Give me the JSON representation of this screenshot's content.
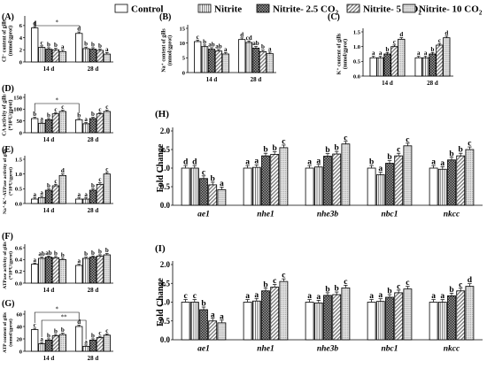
{
  "legend": {
    "items": [
      {
        "label": "Control",
        "pattern": "white"
      },
      {
        "label": "Nitrite",
        "pattern": "vlines"
      },
      {
        "label": "Nitrite- 2.5 CO",
        "sub": "2",
        "pattern": "checker"
      },
      {
        "label": "Nitrite- 5 CO",
        "sub": "2",
        "pattern": "diag"
      },
      {
        "label": "Nitrite- 10 CO",
        "sub": "2",
        "pattern": "dots"
      }
    ]
  },
  "colors": {
    "ink": "#000000",
    "grey": "#8a8a8a",
    "light": "#cfcfcf"
  },
  "chart_data": [
    {
      "id": "A",
      "type": "bar",
      "panel_label": "(A)",
      "ylabel": [
        "Cl⁻ content of gills",
        "(mmol/gprot)"
      ],
      "categories": [
        "14 d",
        "28 d"
      ],
      "yticks": [
        "0",
        "2",
        "4",
        "6"
      ],
      "ylim": [
        0,
        7
      ],
      "series_values": [
        [
          5.6,
          2.4,
          2.1,
          2.0,
          1.7
        ],
        [
          4.7,
          2.2,
          2.1,
          1.9,
          1.3
        ]
      ],
      "letters": [
        [
          "d",
          "c",
          "b",
          "b",
          "a"
        ],
        [
          "d",
          "b",
          "b",
          "b",
          "a"
        ]
      ],
      "sig": {
        "from": 0,
        "to": 1,
        "label": "*"
      }
    },
    {
      "id": "B",
      "type": "bar",
      "panel_label": "(B)",
      "ylabel": [
        "Na⁺ content of gills",
        "(mmol/gprot)"
      ],
      "categories": [
        "14 d",
        "28 d"
      ],
      "yticks": [
        "0",
        "5",
        "10",
        "15"
      ],
      "ylim": [
        0,
        15
      ],
      "series_values": [
        [
          10.5,
          8.8,
          7.9,
          7.3,
          6.3
        ],
        [
          11.2,
          10.2,
          8.3,
          7.1,
          6.4
        ]
      ],
      "letters": [
        [
          "c",
          "b",
          "ab",
          "ab",
          "a"
        ],
        [
          "d",
          "cd",
          "ab",
          "b",
          "a"
        ]
      ]
    },
    {
      "id": "C",
      "type": "bar",
      "panel_label": "(C)",
      "ylabel": [
        "K⁺ content of gills",
        "(mmol/gprot)"
      ],
      "categories": [
        "14 d",
        "28 d"
      ],
      "yticks": [
        "0.0",
        "0.5",
        "1.0",
        "1.5"
      ],
      "ylim": [
        0,
        1.5
      ],
      "series_values": [
        [
          0.62,
          0.62,
          0.75,
          1.0,
          1.25
        ],
        [
          0.62,
          0.62,
          0.75,
          1.05,
          1.3
        ]
      ],
      "letters": [
        [
          "a",
          "a",
          "b",
          "c",
          "d"
        ],
        [
          "a",
          "a",
          "b",
          "c",
          "d"
        ]
      ]
    },
    {
      "id": "D",
      "type": "bar",
      "panel_label": "(D)",
      "ylabel": [
        "CA activity of gills",
        "(*10²U/gprot)"
      ],
      "categories": [
        "14 d",
        "28 d"
      ],
      "yticks": [
        "0",
        "50",
        "100",
        "150"
      ],
      "ylim": [
        0,
        150
      ],
      "series_values": [
        [
          60,
          40,
          55,
          80,
          90
        ],
        [
          55,
          38,
          60,
          80,
          90
        ]
      ],
      "letters": [
        [
          "b",
          "a",
          "b",
          "c",
          "c"
        ],
        [
          "b",
          "a",
          "b",
          "c",
          "c"
        ]
      ],
      "sig": {
        "from": 0,
        "to": 1,
        "label": "*"
      }
    },
    {
      "id": "E",
      "type": "bar",
      "panel_label": "(E)",
      "ylabel": [
        "Na⁺-K⁺-ATPase activity of gills",
        "(*10²U/gprot)"
      ],
      "categories": [
        "14 d",
        "28 d"
      ],
      "yticks": [
        "0.0",
        "0.5",
        "1.0",
        "1.5"
      ],
      "ylim": [
        0,
        1.5
      ],
      "series_values": [
        [
          0.15,
          0.2,
          0.45,
          0.6,
          0.95
        ],
        [
          0.15,
          0.15,
          0.45,
          0.65,
          1.0
        ]
      ],
      "letters": [
        [
          "a",
          "a",
          "b",
          "c",
          "d"
        ],
        [
          "a",
          "a",
          "b",
          "c",
          "c"
        ]
      ]
    },
    {
      "id": "F",
      "type": "bar",
      "panel_label": "(F)",
      "ylabel": [
        "ATPase activity of gills",
        "(*10²U/gprot)"
      ],
      "categories": [
        "14 d",
        "28 d"
      ],
      "yticks": [
        "0.0",
        "0.2",
        "0.4",
        "0.6"
      ],
      "ylim": [
        0,
        0.6
      ],
      "series_values": [
        [
          0.32,
          0.42,
          0.44,
          0.43,
          0.4
        ],
        [
          0.3,
          0.42,
          0.44,
          0.46,
          0.48
        ]
      ],
      "letters": [
        [
          "a",
          "ab",
          "ab",
          "b",
          "b"
        ],
        [
          "a",
          "b",
          "b",
          "b",
          "b"
        ]
      ]
    },
    {
      "id": "G",
      "type": "bar",
      "panel_label": "(G)",
      "ylabel": [
        "ATP content of gills",
        "(mmol/gprot)"
      ],
      "categories": [
        "14 d",
        "28 d"
      ],
      "yticks": [
        "0",
        "20",
        "40",
        "60"
      ],
      "ylim": [
        0,
        60
      ],
      "series_values": [
        [
          35,
          12,
          18,
          25,
          27
        ],
        [
          40,
          8,
          18,
          22,
          26
        ]
      ],
      "letters": [
        [
          "c",
          "a",
          "b",
          "b",
          "b"
        ],
        [
          "d",
          "a",
          "b",
          "c",
          "c"
        ]
      ],
      "brackets": [
        {
          "x_series": 0,
          "x_cat_from": 0,
          "x_cat_to": 1,
          "label": "*",
          "level": 2
        },
        {
          "x_series": 1,
          "x_cat_from": 0,
          "x_cat_to": 1,
          "label": "**",
          "level": 1
        }
      ]
    },
    {
      "id": "H",
      "type": "bar",
      "panel_label": "(H)",
      "ylabel": "Fold Change",
      "categories": [
        "ae1",
        "nhe1",
        "nhe3b",
        "nbc1",
        "nkcc"
      ],
      "yticks": [
        "0.0",
        "0.5",
        "1.0",
        "1.5",
        "2.0"
      ],
      "ylim": [
        0,
        2.0
      ],
      "series_values": [
        [
          1.0,
          1.0,
          0.72,
          0.55,
          0.42
        ],
        [
          1.0,
          1.02,
          1.33,
          1.37,
          1.55
        ],
        [
          1.0,
          1.03,
          1.32,
          1.38,
          1.65
        ],
        [
          1.0,
          0.82,
          1.13,
          1.33,
          1.6
        ],
        [
          1.0,
          0.97,
          1.22,
          1.33,
          1.5
        ]
      ],
      "letters": [
        [
          "d",
          "d",
          "c",
          "b",
          "a"
        ],
        [
          "a",
          "a",
          "b",
          "b",
          "c"
        ],
        [
          "a",
          "a",
          "b",
          "b",
          "c"
        ],
        [
          "b",
          "a",
          "b",
          "c",
          "c"
        ],
        [
          "a",
          "a",
          "b",
          "b",
          "c"
        ]
      ]
    },
    {
      "id": "I",
      "type": "bar",
      "panel_label": "(I)",
      "ylabel": "Fold Change",
      "categories": [
        "ae1",
        "nhe1",
        "nhe3b",
        "nbc1",
        "nkcc"
      ],
      "yticks": [
        "0.0",
        "0.5",
        "1.0",
        "1.5",
        "2.0"
      ],
      "ylim": [
        0,
        2.0
      ],
      "series_values": [
        [
          1.0,
          1.0,
          0.8,
          0.5,
          0.45
        ],
        [
          1.0,
          1.03,
          1.3,
          1.4,
          1.55
        ],
        [
          1.0,
          0.98,
          1.18,
          1.2,
          1.38
        ],
        [
          1.0,
          1.02,
          1.13,
          1.25,
          1.35
        ],
        [
          1.0,
          1.0,
          1.17,
          1.3,
          1.42
        ]
      ],
      "letters": [
        [
          "c",
          "c",
          "b",
          "a",
          "a"
        ],
        [
          "a",
          "a",
          "b",
          "c",
          "c"
        ],
        [
          "a",
          "a",
          "b",
          "b",
          "c"
        ],
        [
          "a",
          "a",
          "b",
          "c",
          "c"
        ],
        [
          "a",
          "a",
          "b",
          "c",
          "d"
        ]
      ]
    }
  ]
}
